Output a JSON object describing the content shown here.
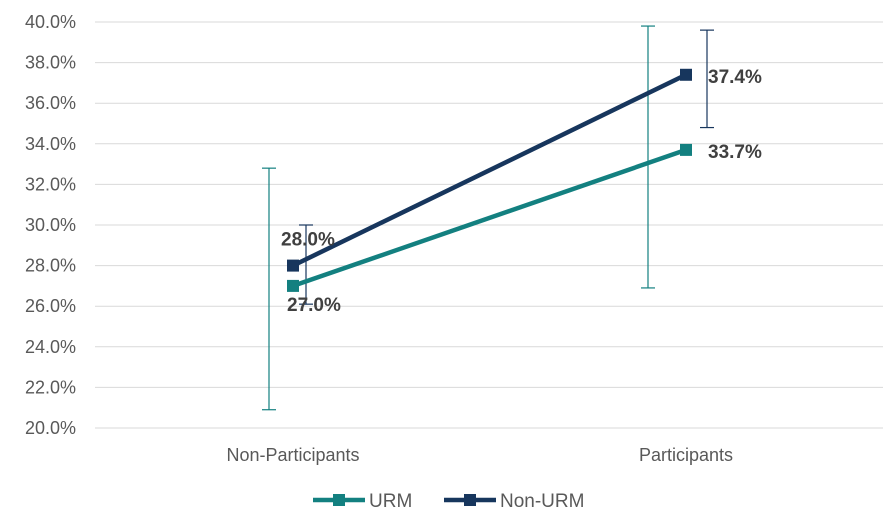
{
  "chart_data": {
    "type": "line",
    "categories": [
      "Non-Participants",
      "Participants"
    ],
    "series": [
      {
        "name": "URM",
        "color": "#138080",
        "values": [
          27.0,
          33.7
        ],
        "value_labels": [
          "27.0%",
          "33.7%"
        ],
        "error_low": [
          20.9,
          26.9
        ],
        "error_high": [
          32.8,
          39.8
        ]
      },
      {
        "name": "Non-URM",
        "color": "#17365D",
        "values": [
          28.0,
          37.4
        ],
        "value_labels": [
          "28.0%",
          "37.4%"
        ],
        "error_low": [
          26.1,
          34.8
        ],
        "error_high": [
          30.0,
          39.6
        ]
      }
    ],
    "ylim": [
      20.0,
      40.0
    ],
    "yticks": [
      "20.0%",
      "22.0%",
      "24.0%",
      "26.0%",
      "28.0%",
      "30.0%",
      "32.0%",
      "34.0%",
      "36.0%",
      "38.0%",
      "40.0%"
    ],
    "grid": true,
    "legend": "bottom-center"
  }
}
